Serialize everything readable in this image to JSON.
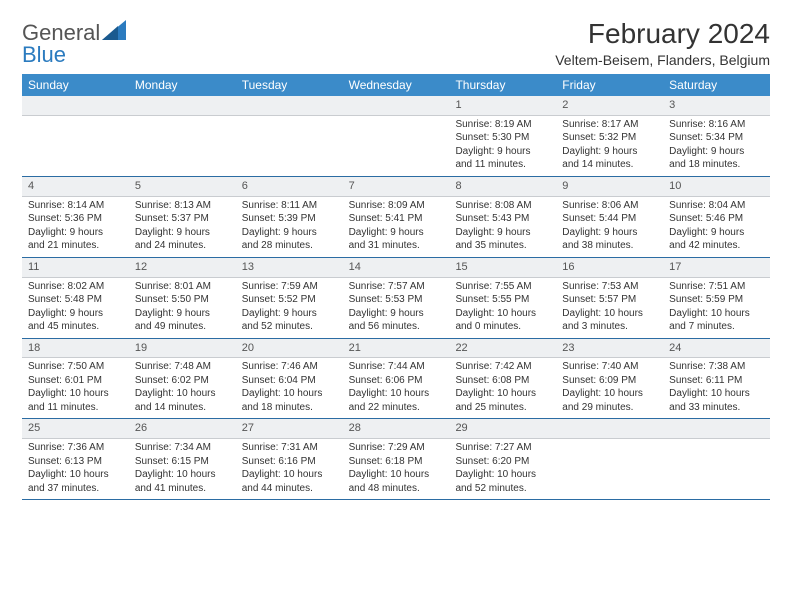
{
  "logo": {
    "text1": "General",
    "text2": "Blue"
  },
  "title": "February 2024",
  "subtitle": "Veltem-Beisem, Flanders, Belgium",
  "colors": {
    "header_bg": "#3b8bc9",
    "date_bg": "#eef0f2",
    "row_border": "#2b6ca3",
    "date_border": "#c9ccd0"
  },
  "weekdays": [
    "Sunday",
    "Monday",
    "Tuesday",
    "Wednesday",
    "Thursday",
    "Friday",
    "Saturday"
  ],
  "weeks": [
    {
      "dates": [
        "",
        "",
        "",
        "",
        "1",
        "2",
        "3"
      ],
      "info": [
        null,
        null,
        null,
        null,
        {
          "sunrise": "Sunrise: 8:19 AM",
          "sunset": "Sunset: 5:30 PM",
          "day1": "Daylight: 9 hours",
          "day2": "and 11 minutes."
        },
        {
          "sunrise": "Sunrise: 8:17 AM",
          "sunset": "Sunset: 5:32 PM",
          "day1": "Daylight: 9 hours",
          "day2": "and 14 minutes."
        },
        {
          "sunrise": "Sunrise: 8:16 AM",
          "sunset": "Sunset: 5:34 PM",
          "day1": "Daylight: 9 hours",
          "day2": "and 18 minutes."
        }
      ]
    },
    {
      "dates": [
        "4",
        "5",
        "6",
        "7",
        "8",
        "9",
        "10"
      ],
      "info": [
        {
          "sunrise": "Sunrise: 8:14 AM",
          "sunset": "Sunset: 5:36 PM",
          "day1": "Daylight: 9 hours",
          "day2": "and 21 minutes."
        },
        {
          "sunrise": "Sunrise: 8:13 AM",
          "sunset": "Sunset: 5:37 PM",
          "day1": "Daylight: 9 hours",
          "day2": "and 24 minutes."
        },
        {
          "sunrise": "Sunrise: 8:11 AM",
          "sunset": "Sunset: 5:39 PM",
          "day1": "Daylight: 9 hours",
          "day2": "and 28 minutes."
        },
        {
          "sunrise": "Sunrise: 8:09 AM",
          "sunset": "Sunset: 5:41 PM",
          "day1": "Daylight: 9 hours",
          "day2": "and 31 minutes."
        },
        {
          "sunrise": "Sunrise: 8:08 AM",
          "sunset": "Sunset: 5:43 PM",
          "day1": "Daylight: 9 hours",
          "day2": "and 35 minutes."
        },
        {
          "sunrise": "Sunrise: 8:06 AM",
          "sunset": "Sunset: 5:44 PM",
          "day1": "Daylight: 9 hours",
          "day2": "and 38 minutes."
        },
        {
          "sunrise": "Sunrise: 8:04 AM",
          "sunset": "Sunset: 5:46 PM",
          "day1": "Daylight: 9 hours",
          "day2": "and 42 minutes."
        }
      ]
    },
    {
      "dates": [
        "11",
        "12",
        "13",
        "14",
        "15",
        "16",
        "17"
      ],
      "info": [
        {
          "sunrise": "Sunrise: 8:02 AM",
          "sunset": "Sunset: 5:48 PM",
          "day1": "Daylight: 9 hours",
          "day2": "and 45 minutes."
        },
        {
          "sunrise": "Sunrise: 8:01 AM",
          "sunset": "Sunset: 5:50 PM",
          "day1": "Daylight: 9 hours",
          "day2": "and 49 minutes."
        },
        {
          "sunrise": "Sunrise: 7:59 AM",
          "sunset": "Sunset: 5:52 PM",
          "day1": "Daylight: 9 hours",
          "day2": "and 52 minutes."
        },
        {
          "sunrise": "Sunrise: 7:57 AM",
          "sunset": "Sunset: 5:53 PM",
          "day1": "Daylight: 9 hours",
          "day2": "and 56 minutes."
        },
        {
          "sunrise": "Sunrise: 7:55 AM",
          "sunset": "Sunset: 5:55 PM",
          "day1": "Daylight: 10 hours",
          "day2": "and 0 minutes."
        },
        {
          "sunrise": "Sunrise: 7:53 AM",
          "sunset": "Sunset: 5:57 PM",
          "day1": "Daylight: 10 hours",
          "day2": "and 3 minutes."
        },
        {
          "sunrise": "Sunrise: 7:51 AM",
          "sunset": "Sunset: 5:59 PM",
          "day1": "Daylight: 10 hours",
          "day2": "and 7 minutes."
        }
      ]
    },
    {
      "dates": [
        "18",
        "19",
        "20",
        "21",
        "22",
        "23",
        "24"
      ],
      "info": [
        {
          "sunrise": "Sunrise: 7:50 AM",
          "sunset": "Sunset: 6:01 PM",
          "day1": "Daylight: 10 hours",
          "day2": "and 11 minutes."
        },
        {
          "sunrise": "Sunrise: 7:48 AM",
          "sunset": "Sunset: 6:02 PM",
          "day1": "Daylight: 10 hours",
          "day2": "and 14 minutes."
        },
        {
          "sunrise": "Sunrise: 7:46 AM",
          "sunset": "Sunset: 6:04 PM",
          "day1": "Daylight: 10 hours",
          "day2": "and 18 minutes."
        },
        {
          "sunrise": "Sunrise: 7:44 AM",
          "sunset": "Sunset: 6:06 PM",
          "day1": "Daylight: 10 hours",
          "day2": "and 22 minutes."
        },
        {
          "sunrise": "Sunrise: 7:42 AM",
          "sunset": "Sunset: 6:08 PM",
          "day1": "Daylight: 10 hours",
          "day2": "and 25 minutes."
        },
        {
          "sunrise": "Sunrise: 7:40 AM",
          "sunset": "Sunset: 6:09 PM",
          "day1": "Daylight: 10 hours",
          "day2": "and 29 minutes."
        },
        {
          "sunrise": "Sunrise: 7:38 AM",
          "sunset": "Sunset: 6:11 PM",
          "day1": "Daylight: 10 hours",
          "day2": "and 33 minutes."
        }
      ]
    },
    {
      "dates": [
        "25",
        "26",
        "27",
        "28",
        "29",
        "",
        ""
      ],
      "info": [
        {
          "sunrise": "Sunrise: 7:36 AM",
          "sunset": "Sunset: 6:13 PM",
          "day1": "Daylight: 10 hours",
          "day2": "and 37 minutes."
        },
        {
          "sunrise": "Sunrise: 7:34 AM",
          "sunset": "Sunset: 6:15 PM",
          "day1": "Daylight: 10 hours",
          "day2": "and 41 minutes."
        },
        {
          "sunrise": "Sunrise: 7:31 AM",
          "sunset": "Sunset: 6:16 PM",
          "day1": "Daylight: 10 hours",
          "day2": "and 44 minutes."
        },
        {
          "sunrise": "Sunrise: 7:29 AM",
          "sunset": "Sunset: 6:18 PM",
          "day1": "Daylight: 10 hours",
          "day2": "and 48 minutes."
        },
        {
          "sunrise": "Sunrise: 7:27 AM",
          "sunset": "Sunset: 6:20 PM",
          "day1": "Daylight: 10 hours",
          "day2": "and 52 minutes."
        },
        null,
        null
      ]
    }
  ]
}
